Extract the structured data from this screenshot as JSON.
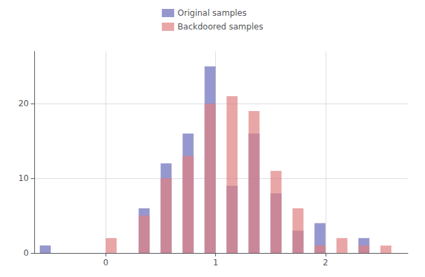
{
  "chart_data": {
    "type": "histogram",
    "bins": [
      -0.6,
      -0.5,
      -0.4,
      -0.3,
      -0.2,
      -0.1,
      0.0,
      0.1,
      0.2,
      0.3,
      0.4,
      0.5,
      0.6,
      0.7,
      0.8,
      0.9,
      1.0,
      1.1,
      1.2,
      1.3,
      1.4,
      1.5,
      1.6,
      1.7,
      1.8,
      1.9,
      2.0,
      2.1,
      2.2,
      2.3,
      2.4,
      2.5,
      2.6
    ],
    "series": [
      {
        "name": "Original samples",
        "color": "#6b6bba",
        "values": [
          1,
          0,
          0,
          0,
          0,
          0,
          0,
          0,
          0,
          6,
          0,
          12,
          0,
          16,
          0,
          25,
          0,
          9,
          0,
          16,
          0,
          8,
          0,
          3,
          0,
          4,
          0,
          0,
          0,
          2,
          0,
          0
        ]
      },
      {
        "name": "Backdoored samples",
        "color": "#e08080",
        "values": [
          0,
          0,
          0,
          0,
          0,
          0,
          2,
          0,
          0,
          5,
          0,
          10,
          0,
          13,
          0,
          20,
          0,
          21,
          0,
          19,
          0,
          11,
          0,
          6,
          0,
          1,
          0,
          2,
          0,
          1,
          0,
          1
        ]
      }
    ],
    "xlim": [
      -0.65,
      2.75
    ],
    "xticks": [
      0,
      1,
      2
    ],
    "ylim": [
      0,
      27
    ],
    "yticks": [
      0,
      10,
      20
    ],
    "grid": true,
    "legend": "top"
  }
}
